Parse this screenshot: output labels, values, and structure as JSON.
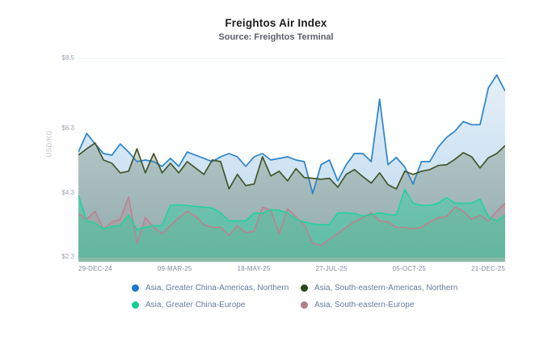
{
  "header": {
    "title": "Freightos Air Index",
    "subtitle": "Source: Freightos Terminal"
  },
  "chart_data": {
    "type": "area",
    "title": "Freightos Air Index",
    "subtitle": "Source: Freightos Terminal",
    "xlabel": "",
    "ylabel": "USD/KG",
    "ylim": [
      2.3,
      8.5
    ],
    "y_ticks": [
      "$8.5",
      "$6.3",
      "$4.3",
      "$2.3"
    ],
    "y_tick_values": [
      8.5,
      6.3,
      4.3,
      2.3
    ],
    "x_ticks": [
      "29-DEC-24",
      "09-MAR-25",
      "18-MAY-25",
      "27-JUL-25",
      "05-OCT-25",
      "21-DEC-25"
    ],
    "x_interval": "weekly",
    "grid": "off",
    "legend_position": "bottom",
    "series": [
      {
        "name": "Asia, Greater China-Americas, Northern",
        "color": "#2b84cb",
        "dot_color": "#1c78c8",
        "fill_opacity_top": 0.1,
        "fill_opacity_bottom": 0.32,
        "values": [
          5.6,
          6.18,
          5.85,
          5.55,
          5.5,
          5.85,
          5.6,
          5.3,
          5.35,
          5.3,
          5.15,
          5.4,
          5.15,
          5.6,
          5.5,
          5.4,
          5.3,
          5.45,
          5.55,
          5.45,
          5.15,
          5.45,
          5.55,
          5.35,
          5.4,
          5.45,
          5.35,
          5.3,
          4.3,
          5.2,
          5.35,
          4.7,
          5.2,
          5.55,
          5.55,
          5.3,
          7.25,
          5.2,
          5.43,
          5.13,
          4.6,
          5.3,
          5.3,
          5.75,
          6.05,
          6.25,
          6.55,
          6.45,
          6.45,
          7.6,
          8.0,
          7.5
        ]
      },
      {
        "name": "Asia, South-eastern-Americas, Northern",
        "color": "#42552a",
        "dot_color": "#2b471d",
        "fill_opacity_top": 0.16,
        "fill_opacity_bottom": 0.34,
        "values": [
          5.5,
          5.7,
          5.88,
          5.35,
          5.25,
          4.95,
          5.0,
          5.7,
          4.95,
          5.55,
          4.95,
          5.25,
          4.95,
          5.3,
          5.1,
          4.9,
          5.35,
          5.3,
          4.45,
          4.9,
          4.55,
          4.6,
          5.45,
          4.85,
          5.0,
          4.7,
          5.08,
          4.8,
          4.78,
          4.75,
          4.78,
          4.5,
          4.9,
          5.05,
          4.83,
          4.63,
          4.95,
          4.58,
          4.45,
          5.0,
          4.9,
          5.0,
          5.05,
          5.18,
          5.2,
          5.37,
          5.58,
          5.45,
          5.1,
          5.42,
          5.55,
          5.8
        ]
      },
      {
        "name": "Asia, Greater China-Europe",
        "color": "#25d19e",
        "dot_color": "#14ce8c",
        "fill_opacity_top": 0.16,
        "fill_opacity_bottom": 0.5,
        "values": [
          4.25,
          3.45,
          3.38,
          3.2,
          3.28,
          3.3,
          3.63,
          3.18,
          3.25,
          3.3,
          3.3,
          3.93,
          3.95,
          3.93,
          3.9,
          3.88,
          3.85,
          3.7,
          3.45,
          3.45,
          3.45,
          3.7,
          3.68,
          3.8,
          3.78,
          3.7,
          3.5,
          3.42,
          3.35,
          3.33,
          3.33,
          3.7,
          3.7,
          3.68,
          3.6,
          3.65,
          3.7,
          3.65,
          3.63,
          4.43,
          4.0,
          3.93,
          3.93,
          4.0,
          4.18,
          4.0,
          4.0,
          4.0,
          4.13,
          3.58,
          3.45,
          3.63
        ]
      },
      {
        "name": "Asia, South-eastern-Europe",
        "color": "#b9848f",
        "dot_color": "#b07f8b",
        "fill_opacity_top": 0.14,
        "fill_opacity_bottom": 0.34,
        "values": [
          3.67,
          3.5,
          3.75,
          3.2,
          3.42,
          3.5,
          4.2,
          2.75,
          3.55,
          3.25,
          3.05,
          3.3,
          3.55,
          3.75,
          3.6,
          3.33,
          3.25,
          3.25,
          3.0,
          3.3,
          3.08,
          3.13,
          3.88,
          3.78,
          3.05,
          3.83,
          3.58,
          3.33,
          2.75,
          2.68,
          2.88,
          3.05,
          3.25,
          3.42,
          3.55,
          3.7,
          3.45,
          3.42,
          3.25,
          3.25,
          3.2,
          3.25,
          3.42,
          3.55,
          3.58,
          3.88,
          3.75,
          3.5,
          3.63,
          3.45,
          3.75,
          4.0
        ]
      }
    ],
    "render_order": [
      0,
      1,
      3,
      2
    ]
  },
  "colors": {
    "axis_band": "#8cbaa9",
    "title_text": "#1d1d1f",
    "subtitle_text": "#5a5f69",
    "y_tick_text": "#99a2b4",
    "x_tick_text": "#7e89a0",
    "axis_title_text": "#b6bdc9",
    "legend_text": "#667aa0",
    "plot_background": "#fdfefe"
  }
}
